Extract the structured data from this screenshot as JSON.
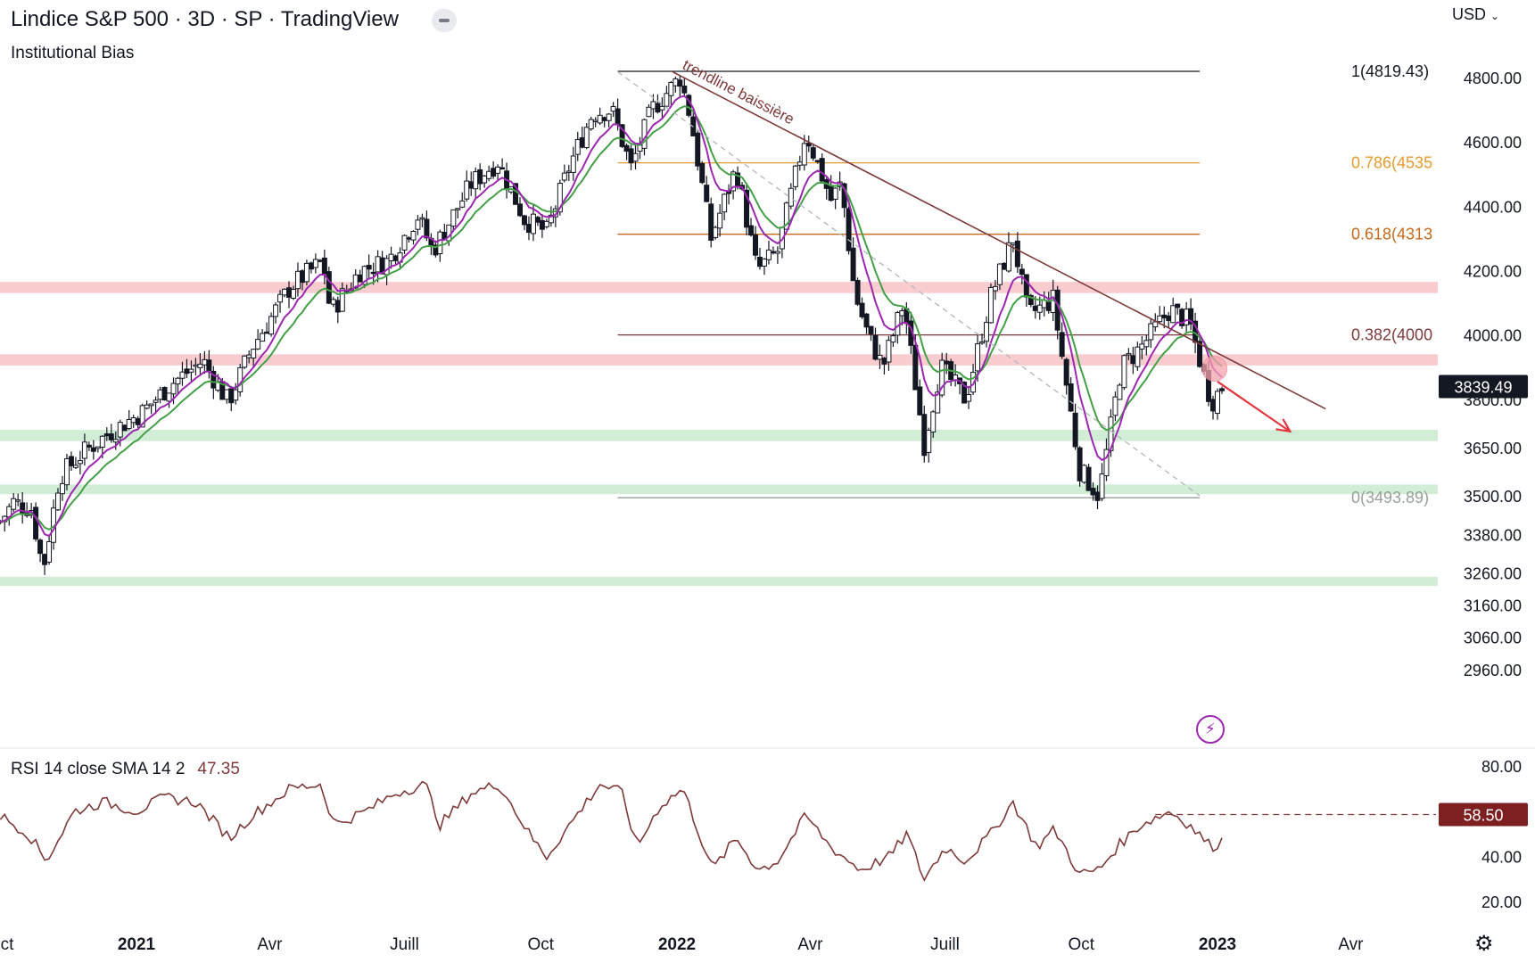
{
  "header": {
    "title": "Lindice S&P 500 · 3D · SP  · TradingView",
    "indicator": "Institutional Bias",
    "currency": "USD",
    "currency_icon": "chevron-down-icon"
  },
  "chart_data": [
    {
      "type": "candlestick",
      "title": "Lindice S&P 500 · 3D · SP",
      "x_range": [
        "2020-10-01",
        "2023-04-15"
      ],
      "y_ticks": [
        4800,
        4600,
        4400,
        4200,
        4000,
        3800,
        3650,
        3500,
        3380,
        3260,
        3160,
        3060,
        2960
      ],
      "y_tick_labels": [
        "4800.00",
        "4600.00",
        "4400.00",
        "4200.00",
        "4000.00",
        "3800.00",
        "3650.00",
        "3500.00",
        "3380.00",
        "3260.00",
        "3160.00",
        "3060.00",
        "2960.00"
      ],
      "x_ticks": [
        {
          "label": "ct",
          "date": "2020-10-01",
          "bold": false
        },
        {
          "label": "2021",
          "date": "2021-01-01",
          "bold": true
        },
        {
          "label": "Avr",
          "date": "2021-04-01",
          "bold": false
        },
        {
          "label": "Juill",
          "date": "2021-07-01",
          "bold": false
        },
        {
          "label": "Oct",
          "date": "2021-10-01",
          "bold": false
        },
        {
          "label": "2022",
          "date": "2022-01-01",
          "bold": true
        },
        {
          "label": "Avr",
          "date": "2022-04-01",
          "bold": false
        },
        {
          "label": "Juill",
          "date": "2022-07-01",
          "bold": false
        },
        {
          "label": "Oct",
          "date": "2022-10-01",
          "bold": false
        },
        {
          "label": "2023",
          "date": "2023-01-01",
          "bold": true
        },
        {
          "label": "Avr",
          "date": "2023-04-01",
          "bold": false
        }
      ],
      "last_price": "3839.49",
      "price_anchors": [
        [
          "2020-10-01",
          3420
        ],
        [
          "2020-10-10",
          3480
        ],
        [
          "2020-10-22",
          3460
        ],
        [
          "2020-10-30",
          3270
        ],
        [
          "2020-11-10",
          3560
        ],
        [
          "2020-11-25",
          3630
        ],
        [
          "2020-12-15",
          3700
        ],
        [
          "2021-01-05",
          3760
        ],
        [
          "2021-01-25",
          3850
        ],
        [
          "2021-02-15",
          3920
        ],
        [
          "2021-03-04",
          3790
        ],
        [
          "2021-03-20",
          3960
        ],
        [
          "2021-04-15",
          4150
        ],
        [
          "2021-05-07",
          4230
        ],
        [
          "2021-05-12",
          4070
        ],
        [
          "2021-06-01",
          4200
        ],
        [
          "2021-06-20",
          4230
        ],
        [
          "2021-07-10",
          4370
        ],
        [
          "2021-07-20",
          4260
        ],
        [
          "2021-08-15",
          4470
        ],
        [
          "2021-09-02",
          4540
        ],
        [
          "2021-09-20",
          4360
        ],
        [
          "2021-10-05",
          4320
        ],
        [
          "2021-10-20",
          4520
        ],
        [
          "2021-11-05",
          4690
        ],
        [
          "2021-11-18",
          4700
        ],
        [
          "2021-12-01",
          4520
        ],
        [
          "2021-12-15",
          4700
        ],
        [
          "2022-01-03",
          4800
        ],
        [
          "2022-01-10",
          4680
        ],
        [
          "2022-01-24",
          4300
        ],
        [
          "2022-02-10",
          4520
        ],
        [
          "2022-02-24",
          4200
        ],
        [
          "2022-03-10",
          4260
        ],
        [
          "2022-03-29",
          4630
        ],
        [
          "2022-04-15",
          4420
        ],
        [
          "2022-04-22",
          4470
        ],
        [
          "2022-05-01",
          4130
        ],
        [
          "2022-05-10",
          4000
        ],
        [
          "2022-05-20",
          3900
        ],
        [
          "2022-06-03",
          4100
        ],
        [
          "2022-06-17",
          3660
        ],
        [
          "2022-06-28",
          3900
        ],
        [
          "2022-07-15",
          3800
        ],
        [
          "2022-08-01",
          4120
        ],
        [
          "2022-08-16",
          4300
        ],
        [
          "2022-08-26",
          4060
        ],
        [
          "2022-09-12",
          4110
        ],
        [
          "2022-09-30",
          3580
        ],
        [
          "2022-10-13",
          3500
        ],
        [
          "2022-10-28",
          3900
        ],
        [
          "2022-11-10",
          3960
        ],
        [
          "2022-11-30",
          4080
        ],
        [
          "2022-12-13",
          4040
        ],
        [
          "2022-12-28",
          3790
        ],
        [
          "2023-01-04",
          3839
        ]
      ],
      "ema_fast_color": "#9c27b0",
      "ema_slow_color": "#43a047",
      "candle_color": "#131722",
      "zones": [
        {
          "from": 4130,
          "to": 4165,
          "color": "#f8c8cb"
        },
        {
          "from": 3905,
          "to": 3940,
          "color": "#f8c8cb"
        },
        {
          "from": 3670,
          "to": 3705,
          "color": "#cdebd2"
        },
        {
          "from": 3505,
          "to": 3535,
          "color": "#cdebd2"
        },
        {
          "from": 3220,
          "to": 3248,
          "color": "#cdebd2"
        }
      ],
      "fibonacci": {
        "start_date": "2021-11-22",
        "end_date": "2022-12-20",
        "levels": [
          {
            "label": "1(4819.43)",
            "value": 4819.43,
            "color": "#131722"
          },
          {
            "label": "0.786(4535",
            "value": 4535,
            "color": "#e59b2e"
          },
          {
            "label": "0.618(4313",
            "value": 4313,
            "color": "#c66a1c"
          },
          {
            "label": "0.382(4000",
            "value": 4000,
            "color": "#7e3a3a"
          },
          {
            "label": "0(3493.89)",
            "value": 3493.89,
            "color": "#98a09b"
          }
        ]
      },
      "trendline": {
        "label": "trendline baissière",
        "color": "#7e3a3a",
        "from": {
          "date": "2021-12-29",
          "value": 4818
        },
        "to": {
          "date": "2023-03-15",
          "value": 3770
        }
      },
      "dashed_line": {
        "color": "#b2b5be",
        "from": {
          "date": "2021-11-22",
          "value": 4818
        },
        "to": {
          "date": "2022-12-20",
          "value": 3500
        }
      },
      "target_marker": {
        "date": "2022-12-30",
        "value": 3895,
        "color": "#f4a3ae"
      },
      "projection_arrow": {
        "color": "#e0383e",
        "from": {
          "date": "2023-01-01",
          "value": 3855
        },
        "to": {
          "date": "2023-02-19",
          "value": 3700
        }
      }
    },
    {
      "type": "line",
      "title": "RSI 14 close SMA 14 2",
      "value_label": "47.35",
      "y_ticks": [
        80,
        40,
        20
      ],
      "y_tick_labels": [
        "80.00",
        "40.00",
        "20.00"
      ],
      "color": "#7e3a3a",
      "reference_level": {
        "value": 58.5,
        "label": "58.50",
        "from_date": "2022-11-20"
      },
      "rsi_anchors": [
        [
          "2020-10-01",
          58
        ],
        [
          "2020-10-20",
          50
        ],
        [
          "2020-11-01",
          38
        ],
        [
          "2020-11-20",
          60
        ],
        [
          "2020-12-10",
          64
        ],
        [
          "2021-01-01",
          60
        ],
        [
          "2021-01-20",
          66
        ],
        [
          "2021-02-10",
          64
        ],
        [
          "2021-03-05",
          48
        ],
        [
          "2021-03-20",
          58
        ],
        [
          "2021-04-15",
          70
        ],
        [
          "2021-05-05",
          72
        ],
        [
          "2021-05-15",
          54
        ],
        [
          "2021-06-05",
          60
        ],
        [
          "2021-06-25",
          68
        ],
        [
          "2021-07-15",
          72
        ],
        [
          "2021-07-25",
          54
        ],
        [
          "2021-08-15",
          68
        ],
        [
          "2021-09-03",
          72
        ],
        [
          "2021-09-25",
          48
        ],
        [
          "2021-10-05",
          40
        ],
        [
          "2021-10-25",
          58
        ],
        [
          "2021-11-10",
          72
        ],
        [
          "2021-11-25",
          68
        ],
        [
          "2021-12-05",
          44
        ],
        [
          "2021-12-20",
          62
        ],
        [
          "2022-01-05",
          70
        ],
        [
          "2022-01-25",
          34
        ],
        [
          "2022-02-10",
          48
        ],
        [
          "2022-02-25",
          34
        ],
        [
          "2022-03-10",
          38
        ],
        [
          "2022-03-29",
          58
        ],
        [
          "2022-04-15",
          44
        ],
        [
          "2022-05-05",
          34
        ],
        [
          "2022-05-25",
          40
        ],
        [
          "2022-06-05",
          50
        ],
        [
          "2022-06-17",
          30
        ],
        [
          "2022-07-01",
          44
        ],
        [
          "2022-07-15",
          38
        ],
        [
          "2022-08-01",
          50
        ],
        [
          "2022-08-16",
          64
        ],
        [
          "2022-09-01",
          44
        ],
        [
          "2022-09-13",
          52
        ],
        [
          "2022-09-30",
          32
        ],
        [
          "2022-10-13",
          34
        ],
        [
          "2022-10-25",
          44
        ],
        [
          "2022-11-10",
          54
        ],
        [
          "2022-11-30",
          60
        ],
        [
          "2022-12-13",
          54
        ],
        [
          "2022-12-28",
          44
        ],
        [
          "2023-01-04",
          47
        ]
      ]
    }
  ],
  "toolbar": {
    "bolt_icon": "lightning-icon",
    "settings_icon": "gear-icon"
  }
}
